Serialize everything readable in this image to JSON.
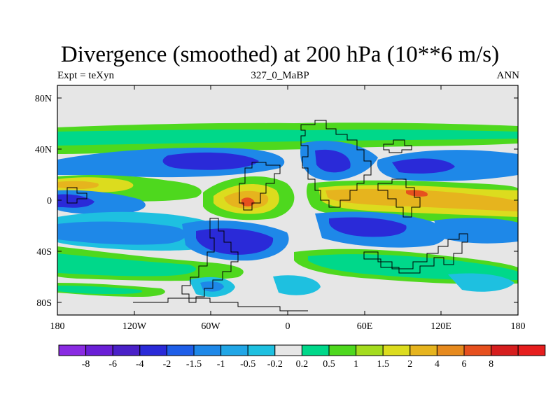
{
  "title": "Divergence (smoothed) at 200 hPa (10**6 m/s)",
  "left_label": "Expt = teXyn",
  "center_label": "327_0_MaBP",
  "right_label": "ANN",
  "y_ticks": [
    "80N",
    "40N",
    "0",
    "40S",
    "80S"
  ],
  "x_ticks": [
    "180",
    "120W",
    "60W",
    "0",
    "60E",
    "120E",
    "180"
  ],
  "colorbar": {
    "colors": [
      "#8a2be2",
      "#6a1fd6",
      "#4a20c8",
      "#2a2ad8",
      "#1e5ee8",
      "#1e88e8",
      "#21a6e6",
      "#1ec0e0",
      "#e6e6e6",
      "#00d88a",
      "#4ed81e",
      "#a4dc1e",
      "#dcdc1e",
      "#e6b41e",
      "#e68a1e",
      "#e6501e",
      "#d61e1e",
      "#e61e1e"
    ],
    "labels": [
      "-8",
      "-6",
      "-4",
      "-2",
      "-1.5",
      "-1",
      "-0.5",
      "-0.2",
      "0.2",
      "0.5",
      "1",
      "1.5",
      "2",
      "4",
      "6",
      "8"
    ]
  },
  "palette": {
    "background": "#e6e6e6",
    "strong_neg": "#2a2ad8",
    "neg": "#1e88e8",
    "weak_neg": "#1ec0e0",
    "weak_pos": "#00d88a",
    "pos": "#4ed81e",
    "mid_pos": "#dcdc1e",
    "strong_pos": "#e6b41e",
    "max_pos": "#e6501e"
  }
}
